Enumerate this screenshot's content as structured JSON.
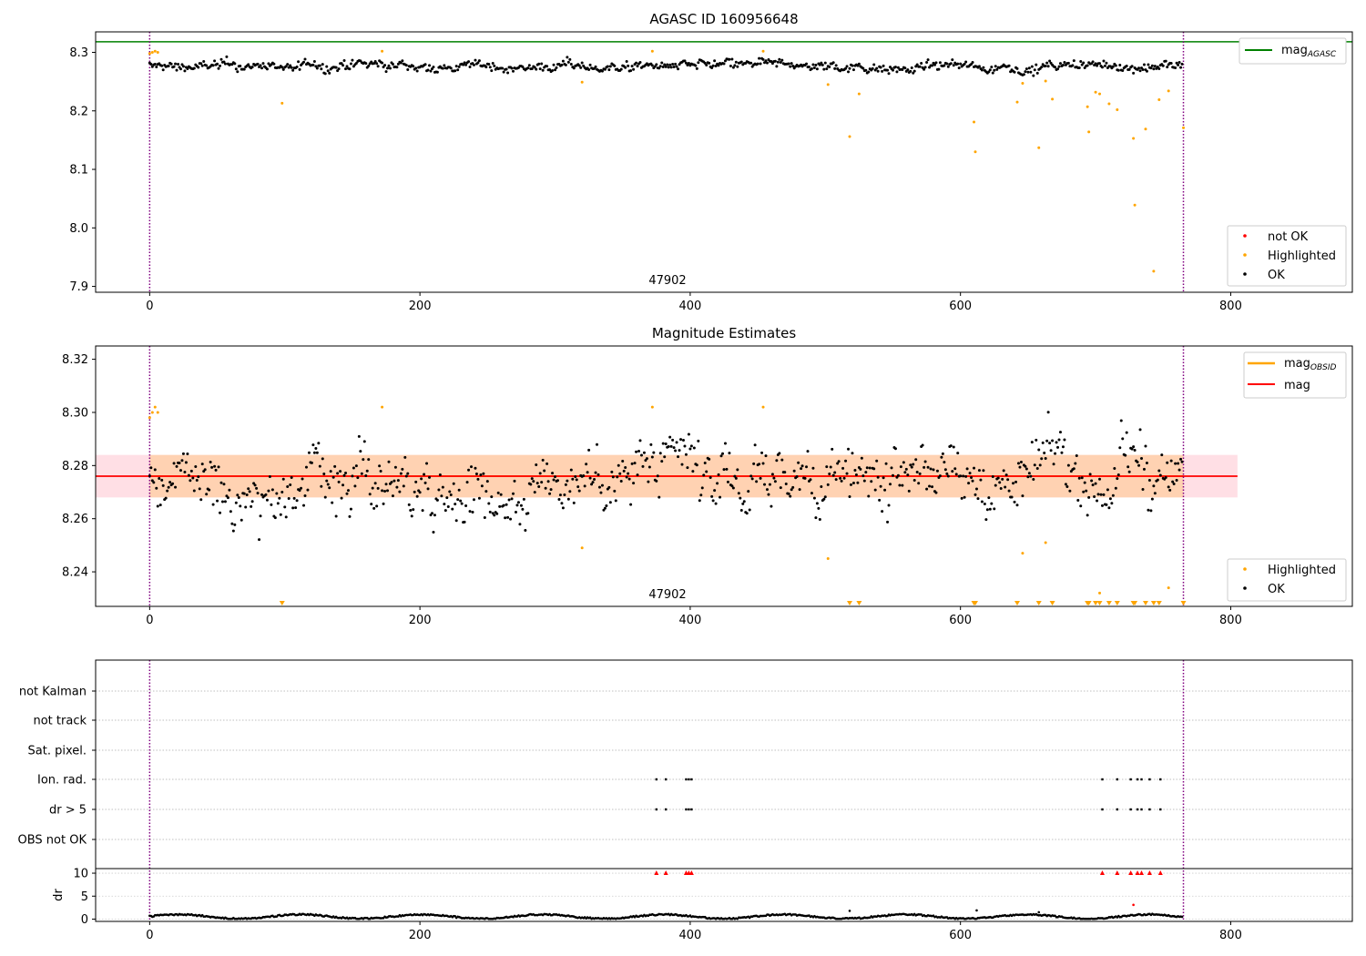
{
  "chart_data": [
    {
      "type": "scatter",
      "title": "AGASC ID 160956648",
      "xlim": [
        -40,
        890
      ],
      "ylim": [
        7.89,
        8.335
      ],
      "xticks": [
        0,
        200,
        400,
        600,
        800
      ],
      "yticks": [
        7.9,
        8.0,
        8.1,
        8.2,
        8.3
      ],
      "ytick_labels": [
        "7.9",
        "8.0",
        "8.1",
        "8.2",
        "8.3"
      ],
      "vlines": [
        0,
        765
      ],
      "hline": {
        "y": 8.318,
        "label": "mag",
        "label_sub": "AGASC",
        "color": "#008000"
      },
      "annotation": {
        "text": "47902",
        "x": 383
      },
      "legend_top": [
        {
          "label": "mag",
          "label_sub": "AGASC",
          "color": "#008000",
          "kind": "line"
        }
      ],
      "legend_bottom": [
        {
          "label": "not OK",
          "color": "#ff0000",
          "kind": "dot"
        },
        {
          "label": "Highlighted",
          "color": "#ffa500",
          "kind": "dot"
        },
        {
          "label": "OK",
          "color": "#000000",
          "kind": "dot"
        }
      ],
      "series": [
        {
          "label": "OK",
          "color": "#000000",
          "n": 765,
          "base": 8.276,
          "noise": 0.006
        },
        {
          "label": "Highlighted",
          "color": "#ffa500",
          "x": [
            0,
            2,
            4,
            6,
            98,
            172,
            320,
            372,
            454,
            502,
            518,
            525,
            610,
            611,
            642,
            646,
            658,
            663,
            668,
            694,
            695,
            700,
            703,
            710,
            716,
            728,
            729,
            737,
            743,
            747,
            754,
            765
          ],
          "y": [
            8.298,
            8.3,
            8.302,
            8.3,
            8.213,
            8.302,
            8.249,
            8.302,
            8.302,
            8.245,
            8.156,
            8.229,
            8.181,
            8.13,
            8.215,
            8.247,
            8.137,
            8.251,
            8.22,
            8.207,
            8.164,
            8.232,
            8.229,
            8.212,
            8.202,
            8.153,
            8.039,
            8.169,
            7.926,
            8.219,
            8.234,
            8.171
          ]
        }
      ]
    },
    {
      "type": "scatter",
      "title": "Magnitude Estimates",
      "xlim": [
        -40,
        890
      ],
      "ylim": [
        8.227,
        8.325
      ],
      "xticks": [
        0,
        200,
        400,
        600,
        800
      ],
      "yticks": [
        8.24,
        8.26,
        8.28,
        8.3,
        8.32
      ],
      "ytick_labels": [
        "8.24",
        "8.26",
        "8.28",
        "8.30",
        "8.32"
      ],
      "vlines": [
        0,
        765
      ],
      "mag_line": {
        "y": 8.276,
        "color": "#ff0000",
        "band": [
          8.268,
          8.284
        ],
        "xmax": 805
      },
      "obsid_line": {
        "y": 8.276,
        "color": "#ffa500",
        "band": [
          8.268,
          8.284
        ],
        "xmin": 0,
        "xmax": 765
      },
      "annotation": {
        "text": "47902",
        "x": 383
      },
      "legend_top": [
        {
          "label": "mag",
          "label_sub": "OBSID",
          "color": "#ffa500",
          "kind": "line"
        },
        {
          "label": "mag",
          "color": "#ff0000",
          "kind": "line"
        }
      ],
      "legend_bottom": [
        {
          "label": "Highlighted",
          "color": "#ffa500",
          "kind": "dot"
        },
        {
          "label": "OK",
          "color": "#000000",
          "kind": "dot"
        }
      ],
      "outlier_markers_x": [
        98,
        518,
        525,
        610,
        611,
        642,
        658,
        668,
        694,
        695,
        700,
        703,
        710,
        716,
        728,
        729,
        737,
        743,
        747,
        765
      ],
      "series": [
        {
          "label": "OK",
          "color": "#000000",
          "n": 765,
          "base": 8.276,
          "noise": 0.006
        },
        {
          "label": "Highlighted",
          "color": "#ffa500",
          "x": [
            0,
            2,
            4,
            6,
            172,
            320,
            372,
            454,
            502,
            646,
            663,
            703,
            754
          ],
          "y": [
            8.298,
            8.3,
            8.302,
            8.3,
            8.302,
            8.249,
            8.302,
            8.302,
            8.245,
            8.247,
            8.251,
            8.232,
            8.234
          ]
        }
      ]
    },
    {
      "type": "scatter",
      "title": "",
      "xlim": [
        -40,
        890
      ],
      "xticks": [
        0,
        200,
        400,
        600,
        800
      ],
      "vlines": [
        0,
        765
      ],
      "flag_rows": [
        "not Kalman",
        "not track",
        "Sat. pixel.",
        "Ion. rad.",
        "dr > 5",
        "OBS not OK"
      ],
      "flag_points": {
        "Ion. rad.": [
          375,
          382,
          397,
          399,
          401,
          705,
          716,
          726,
          731,
          734,
          740,
          748
        ],
        "dr > 5": [
          375,
          382,
          397,
          399,
          401,
          705,
          716,
          726,
          731,
          734,
          740,
          748
        ]
      },
      "dr_axis": {
        "ylim": [
          -0.5,
          11
        ],
        "yticks": [
          0,
          5,
          10
        ],
        "ylabel": "dr"
      },
      "dr_clipped_x": [
        375,
        382,
        397,
        399,
        401,
        705,
        716,
        726,
        731,
        734,
        740,
        748
      ],
      "dr_series": {
        "n": 765,
        "color": "#000000",
        "spikes": [
          {
            "x": 518,
            "y": 1.8
          },
          {
            "x": 612,
            "y": 1.9
          },
          {
            "x": 658,
            "y": 1.5
          },
          {
            "x": 728,
            "y": 3.1
          }
        ]
      }
    }
  ]
}
